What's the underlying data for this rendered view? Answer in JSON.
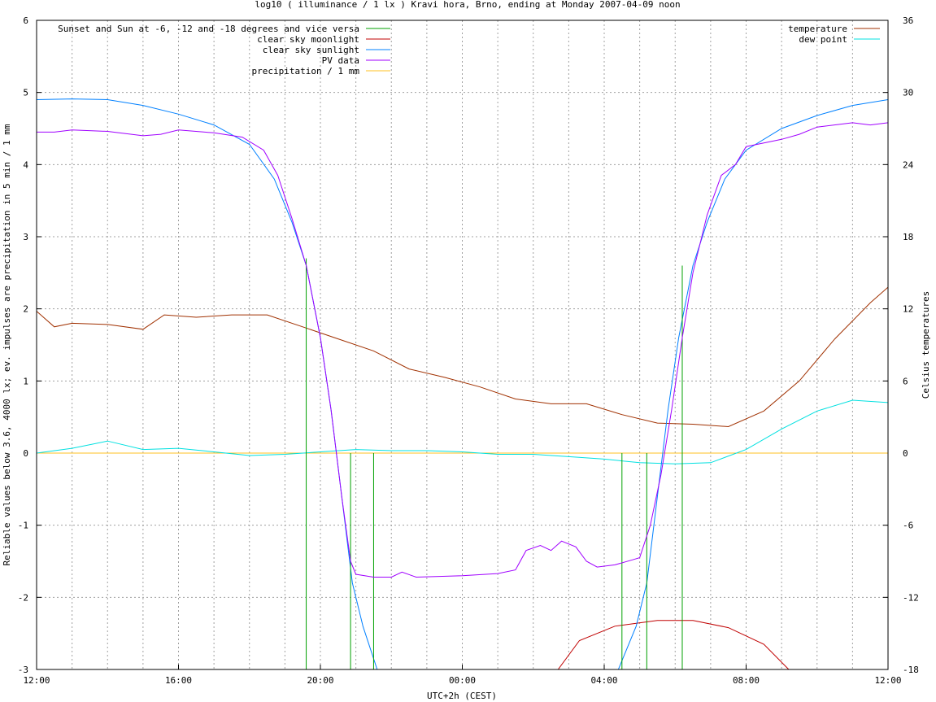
{
  "chart_data": {
    "type": "line",
    "title": "log10 ( illuminance / 1 lx ) Kravi hora, Brno, ending at Monday 2007-04-09 noon",
    "xlabel": "UTC+2h (CEST)",
    "ylabel": "Reliable values below 3.6, 4000 lx; ev. impulses are precipitation in 5 min / 1 mm",
    "y2label": "Celsius temperatures",
    "xlim": [
      0,
      24
    ],
    "ylim": [
      -3,
      6
    ],
    "y2lim": [
      -18,
      36
    ],
    "x_ticks": [
      "12:00",
      "16:00",
      "20:00",
      "00:00",
      "04:00",
      "08:00",
      "12:00"
    ],
    "y_ticks": [
      "-3",
      "-2",
      "-1",
      "0",
      "1",
      "2",
      "3",
      "4",
      "5",
      "6"
    ],
    "y2_ticks": [
      "-18",
      "-12",
      "-6",
      "0",
      "6",
      "12",
      "18",
      "24",
      "30",
      "36"
    ],
    "grid": true,
    "legend_left": [
      {
        "name": "Sunset and Sun at -6, -12 and -18 degrees and vice versa",
        "color": "#00a000"
      },
      {
        "name": "clear sky moonlight",
        "color": "#c00000"
      },
      {
        "name": "clear sky sunlight",
        "color": "#0080ff"
      },
      {
        "name": "PV data",
        "color": "#a000ff"
      },
      {
        "name": "precipitation / 1 mm",
        "color": "#ffc020"
      }
    ],
    "legend_right": [
      {
        "name": "temperature",
        "color": "#a03000"
      },
      {
        "name": "dew point",
        "color": "#00e0e0"
      }
    ],
    "sun_events": [
      {
        "x": 7.6,
        "y": 2.7
      },
      {
        "x": 8.85,
        "y": 0
      },
      {
        "x": 9.5,
        "y": 0
      },
      {
        "x": 16.5,
        "y": 0
      },
      {
        "x": 17.2,
        "y": 0
      },
      {
        "x": 18.2,
        "y": 2.6
      }
    ],
    "moonlight": [
      [
        14.7,
        -3
      ],
      [
        15.3,
        -2.6
      ],
      [
        16.3,
        -2.4
      ],
      [
        17.5,
        -2.32
      ],
      [
        18.5,
        -2.32
      ],
      [
        19.5,
        -2.42
      ],
      [
        20.5,
        -2.65
      ],
      [
        21.2,
        -3
      ]
    ],
    "sunlight": [
      [
        0,
        4.9
      ],
      [
        1,
        4.91
      ],
      [
        2,
        4.9
      ],
      [
        3,
        4.82
      ],
      [
        4,
        4.7
      ],
      [
        5,
        4.55
      ],
      [
        6,
        4.28
      ],
      [
        6.7,
        3.8
      ],
      [
        7.2,
        3.2
      ],
      [
        7.6,
        2.6
      ],
      [
        8,
        1.6
      ],
      [
        8.3,
        0.6
      ],
      [
        8.6,
        -0.6
      ],
      [
        8.9,
        -1.8
      ],
      [
        9.2,
        -2.4
      ],
      [
        9.6,
        -3
      ],
      [
        16.4,
        -3
      ],
      [
        16.9,
        -2.4
      ],
      [
        17.2,
        -1.8
      ],
      [
        17.5,
        -0.6
      ],
      [
        17.8,
        0.6
      ],
      [
        18.1,
        1.6
      ],
      [
        18.5,
        2.6
      ],
      [
        18.9,
        3.2
      ],
      [
        19.4,
        3.8
      ],
      [
        20,
        4.2
      ],
      [
        21,
        4.5
      ],
      [
        22,
        4.68
      ],
      [
        23,
        4.82
      ],
      [
        24,
        4.9
      ]
    ],
    "pv_data": [
      [
        0,
        4.45
      ],
      [
        0.5,
        4.45
      ],
      [
        1,
        4.48
      ],
      [
        2,
        4.46
      ],
      [
        3,
        4.4
      ],
      [
        3.5,
        4.42
      ],
      [
        4,
        4.48
      ],
      [
        5,
        4.44
      ],
      [
        5.8,
        4.38
      ],
      [
        6.4,
        4.2
      ],
      [
        6.8,
        3.85
      ],
      [
        7.2,
        3.25
      ],
      [
        7.6,
        2.6
      ],
      [
        8,
        1.6
      ],
      [
        8.3,
        0.6
      ],
      [
        8.6,
        -0.6
      ],
      [
        8.85,
        -1.5
      ],
      [
        9,
        -1.68
      ],
      [
        9.5,
        -1.72
      ],
      [
        10,
        -1.72
      ],
      [
        10.3,
        -1.65
      ],
      [
        10.7,
        -1.72
      ],
      [
        12,
        -1.7
      ],
      [
        13,
        -1.67
      ],
      [
        13.5,
        -1.62
      ],
      [
        13.8,
        -1.35
      ],
      [
        14.2,
        -1.28
      ],
      [
        14.5,
        -1.35
      ],
      [
        14.8,
        -1.22
      ],
      [
        15.2,
        -1.3
      ],
      [
        15.5,
        -1.5
      ],
      [
        15.8,
        -1.58
      ],
      [
        16.3,
        -1.55
      ],
      [
        16.8,
        -1.48
      ],
      [
        17,
        -1.45
      ],
      [
        17.3,
        -1.0
      ],
      [
        17.6,
        -0.3
      ],
      [
        17.9,
        0.6
      ],
      [
        18.2,
        1.6
      ],
      [
        18.5,
        2.5
      ],
      [
        18.9,
        3.3
      ],
      [
        19.3,
        3.85
      ],
      [
        19.7,
        4.0
      ],
      [
        20,
        4.25
      ],
      [
        20.5,
        4.3
      ],
      [
        21,
        4.35
      ],
      [
        21.5,
        4.42
      ],
      [
        22,
        4.52
      ],
      [
        23,
        4.58
      ],
      [
        23.5,
        4.55
      ],
      [
        24,
        4.58
      ]
    ],
    "precipitation": [
      [
        0,
        0
      ],
      [
        24,
        0
      ]
    ],
    "temperature": [
      [
        0,
        11.8
      ],
      [
        0.5,
        10.5
      ],
      [
        1,
        10.8
      ],
      [
        2,
        10.7
      ],
      [
        3,
        10.3
      ],
      [
        3.6,
        11.5
      ],
      [
        4.5,
        11.3
      ],
      [
        5.5,
        11.5
      ],
      [
        6.5,
        11.5
      ],
      [
        7.5,
        10.5
      ],
      [
        8.5,
        9.5
      ],
      [
        9.5,
        8.5
      ],
      [
        10.5,
        7.0
      ],
      [
        11.5,
        6.3
      ],
      [
        12.5,
        5.5
      ],
      [
        13.5,
        4.5
      ],
      [
        14.5,
        4.1
      ],
      [
        15.5,
        4.1
      ],
      [
        16.5,
        3.2
      ],
      [
        17.5,
        2.5
      ],
      [
        18.5,
        2.4
      ],
      [
        19.5,
        2.2
      ],
      [
        20.5,
        3.5
      ],
      [
        21.5,
        6.0
      ],
      [
        22.5,
        9.5
      ],
      [
        23.5,
        12.5
      ],
      [
        24,
        13.8
      ]
    ],
    "dew_point": [
      [
        0,
        0
      ],
      [
        1,
        0.4
      ],
      [
        2,
        1.0
      ],
      [
        3,
        0.3
      ],
      [
        4,
        0.4
      ],
      [
        5,
        0.1
      ],
      [
        6,
        -0.2
      ],
      [
        7,
        -0.1
      ],
      [
        8,
        0.1
      ],
      [
        9,
        0.3
      ],
      [
        10,
        0.2
      ],
      [
        11,
        0.2
      ],
      [
        12,
        0.1
      ],
      [
        13,
        -0.1
      ],
      [
        14,
        -0.1
      ],
      [
        15,
        -0.3
      ],
      [
        16,
        -0.5
      ],
      [
        17,
        -0.8
      ],
      [
        18,
        -0.9
      ],
      [
        19,
        -0.8
      ],
      [
        20,
        0.3
      ],
      [
        21,
        2.0
      ],
      [
        22,
        3.5
      ],
      [
        23,
        4.4
      ],
      [
        24,
        4.2
      ]
    ]
  }
}
